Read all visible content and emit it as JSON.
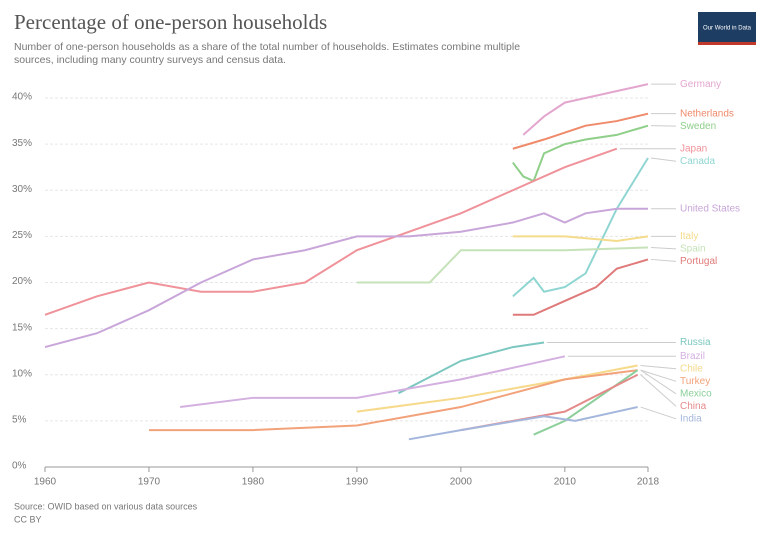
{
  "logo": "Our World in Data",
  "chart_data": {
    "type": "line",
    "title": "Percentage of one-person households",
    "subtitle": [
      "Number of one-person households as a share of the total number of households. Estimates combine multiple",
      "sources, including many country surveys and census data."
    ],
    "source": "Source: OWID based on various data sources",
    "license": "CC BY",
    "xlim": [
      1960,
      2018
    ],
    "xticks": [
      1960,
      1970,
      1980,
      1990,
      2000,
      2010,
      2018
    ],
    "ylim": [
      0,
      40
    ],
    "yticks": [
      {
        "value": 0,
        "label": "0%"
      },
      {
        "value": 5,
        "label": "5%"
      },
      {
        "value": 10,
        "label": "10%"
      },
      {
        "value": 15,
        "label": "15%"
      },
      {
        "value": 20,
        "label": "20%"
      },
      {
        "value": 25,
        "label": "25%"
      },
      {
        "value": 30,
        "label": "30%"
      },
      {
        "value": 35,
        "label": "35%"
      },
      {
        "value": 40,
        "label": "40%"
      }
    ],
    "grid": true,
    "series": [
      {
        "name": "Germany",
        "color": "#e3a6cf",
        "x": [
          2006,
          2008,
          2010,
          2012,
          2014,
          2016,
          2018
        ],
        "values": [
          36,
          38,
          39.5,
          40,
          40.5,
          41,
          41.5
        ]
      },
      {
        "name": "Netherlands",
        "color": "#ef8a6a",
        "x": [
          2005,
          2008,
          2012,
          2015,
          2018
        ],
        "values": [
          34.5,
          35.5,
          37,
          37.5,
          38.3
        ]
      },
      {
        "name": "Sweden",
        "color": "#8fcf8a",
        "x": [
          2005,
          2006,
          2007,
          2008,
          2010,
          2012,
          2015,
          2018
        ],
        "values": [
          33,
          31.5,
          31,
          34,
          35,
          35.5,
          36,
          37
        ]
      },
      {
        "name": "Japan",
        "color": "#f0929a",
        "x": [
          1960,
          1965,
          1970,
          1975,
          1980,
          1985,
          1990,
          1995,
          2000,
          2005,
          2010,
          2015
        ],
        "values": [
          16.5,
          18.5,
          20,
          19,
          19,
          20,
          23.5,
          25.5,
          27.5,
          30,
          32.5,
          34.5
        ]
      },
      {
        "name": "Canada",
        "color": "#8fd6d2",
        "x": [
          2005,
          2007,
          2008,
          2010,
          2012,
          2015,
          2018
        ],
        "values": [
          18.5,
          20.5,
          19,
          19.5,
          21,
          28,
          33.5
        ]
      },
      {
        "name": "United States",
        "color": "#c9a6d9",
        "x": [
          1960,
          1965,
          1970,
          1975,
          1980,
          1985,
          1990,
          1995,
          2000,
          2005,
          2008,
          2010,
          2012,
          2015,
          2018
        ],
        "values": [
          13,
          14.5,
          17,
          20,
          22.5,
          23.5,
          25,
          25,
          25.5,
          26.5,
          27.5,
          26.5,
          27.5,
          28,
          28
        ]
      },
      {
        "name": "Italy",
        "color": "#f4dc8c",
        "x": [
          2005,
          2010,
          2015,
          2018
        ],
        "values": [
          25,
          25,
          24.5,
          25
        ]
      },
      {
        "name": "Spain",
        "color": "#c6e2b8",
        "x": [
          1990,
          1997,
          2000,
          2005,
          2010,
          2018
        ],
        "values": [
          20,
          20,
          23.5,
          23.5,
          23.5,
          23.8
        ]
      },
      {
        "name": "Portugal",
        "color": "#e07a7a",
        "x": [
          2005,
          2007,
          2010,
          2013,
          2015,
          2018
        ],
        "values": [
          16.5,
          16.5,
          18,
          19.5,
          21.5,
          22.5
        ]
      },
      {
        "name": "Russia",
        "color": "#7cc7c0",
        "x": [
          1994,
          2000,
          2005,
          2008
        ],
        "values": [
          8,
          11.5,
          13,
          13.5
        ]
      },
      {
        "name": "Brazil",
        "color": "#d4b0e0",
        "x": [
          1973,
          1980,
          1990,
          2000,
          2010
        ],
        "values": [
          6.5,
          7.5,
          7.5,
          9.5,
          12
        ]
      },
      {
        "name": "Chile",
        "color": "#f6d98a",
        "x": [
          1990,
          2000,
          2010,
          2017
        ],
        "values": [
          6,
          7.5,
          9.5,
          11
        ]
      },
      {
        "name": "Turkey",
        "color": "#f2a27a",
        "x": [
          1970,
          1980,
          1990,
          2000,
          2010,
          2017
        ],
        "values": [
          4,
          4,
          4.5,
          6.5,
          9.5,
          10.5
        ]
      },
      {
        "name": "Mexico",
        "color": "#8ccf9a",
        "x": [
          2007,
          2010,
          2017
        ],
        "values": [
          3.5,
          5,
          10.5
        ]
      },
      {
        "name": "China",
        "color": "#e58a8a",
        "x": [
          2000,
          2010,
          2017
        ],
        "values": [
          4,
          6,
          10
        ]
      },
      {
        "name": "India",
        "color": "#a4b6dc",
        "x": [
          1995,
          2000,
          2008,
          2011,
          2017
        ],
        "values": [
          3,
          4,
          5.5,
          5,
          6.5
        ]
      }
    ]
  }
}
